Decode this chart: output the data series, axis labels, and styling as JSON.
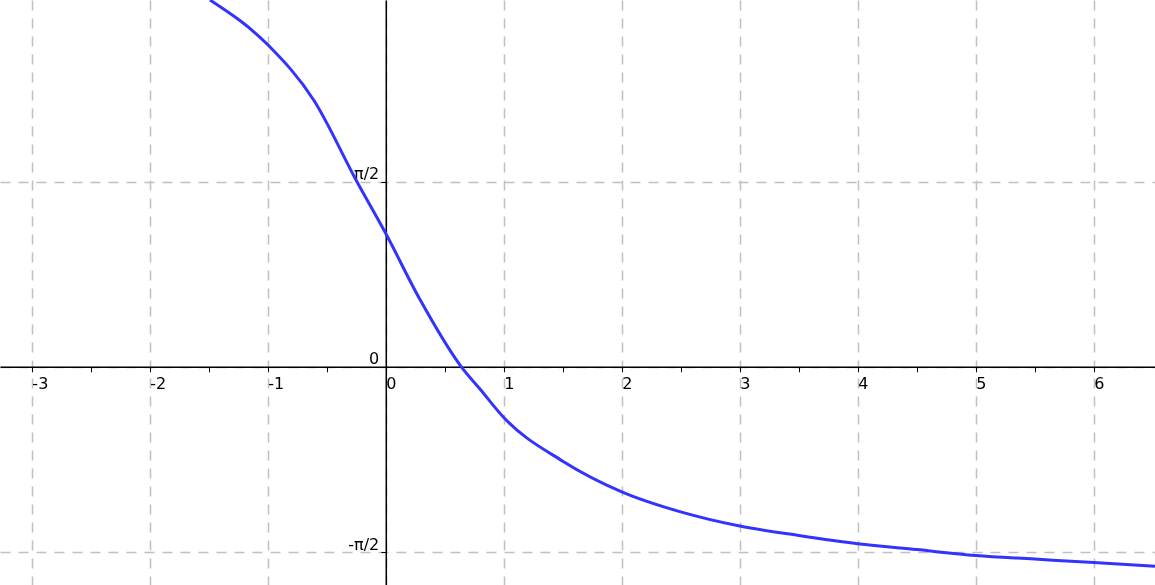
{
  "chart_data": {
    "type": "line",
    "x": [
      -1.49,
      -1.0,
      -0.61,
      -0.25,
      0,
      0.29,
      0.64,
      0.8,
      1,
      1.5,
      2,
      2.5,
      3,
      3.5,
      4,
      4.5,
      5,
      5.5,
      6,
      6.52
    ],
    "series": [
      {
        "color": "#3333ff",
        "values": [
          3.11,
          2.73,
          2.26,
          1.58,
          1.13,
          0.57,
          0,
          -0.19,
          -0.43,
          -0.8,
          -1.06,
          -1.23,
          -1.35,
          -1.43,
          -1.5,
          -1.55,
          -1.6,
          -1.63,
          -1.66,
          -1.69
        ]
      }
    ],
    "xlim": [
      -3.27,
      6.52
    ],
    "ylim": [
      -1.85,
      3.11
    ],
    "xticks": [
      -3,
      {
        "value": -2.5,
        "label": null
      },
      -2,
      {
        "value": -1.5,
        "label": null
      },
      -1,
      {
        "value": -0.5,
        "label": null
      },
      0,
      {
        "value": 0.5,
        "label": null
      },
      1,
      {
        "value": 1.5,
        "label": null
      },
      2,
      {
        "value": 2.5,
        "label": null
      },
      3,
      {
        "value": 3.5,
        "label": null
      },
      4,
      {
        "value": 4.5,
        "label": null
      },
      5,
      {
        "value": 5.5,
        "label": null
      },
      6
    ],
    "yticks": [
      {
        "value": -1.5708,
        "label": "-π/2"
      },
      0,
      {
        "value": 1.5708,
        "label": "π/2"
      }
    ],
    "grid": true,
    "line_style": "solid",
    "marker": "none"
  }
}
